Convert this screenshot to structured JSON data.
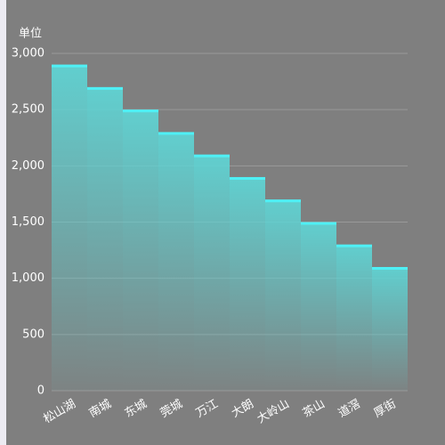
{
  "chart_data": {
    "type": "bar",
    "y_axis_label": "单位",
    "categories": [
      "松山湖",
      "南城",
      "东城",
      "莞城",
      "万江",
      "大朗",
      "大岭山",
      "茶山",
      "道滘",
      "厚街"
    ],
    "values": [
      2900,
      2700,
      2500,
      2300,
      2100,
      1900,
      1700,
      1500,
      1300,
      1100
    ],
    "color": "#5fd3d3",
    "cap_color": "#4ff0f5",
    "ylim": [
      0,
      3000
    ],
    "yticks": [
      0,
      500,
      {
        "value": 1000,
        "label": "1,000"
      },
      {
        "value": 1500,
        "label": "1,500"
      },
      {
        "value": 2000,
        "label": "2,000"
      },
      {
        "value": 2500,
        "label": "2,500"
      },
      {
        "value": 3000,
        "label": "3,000"
      }
    ],
    "grid": true
  }
}
